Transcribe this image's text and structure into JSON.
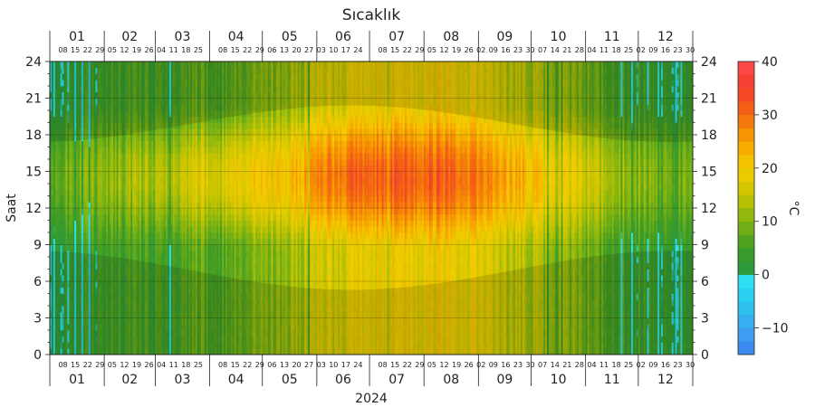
{
  "chart_data": {
    "type": "heatmap",
    "title": "Sıcaklık",
    "xlabel": "2024",
    "ylabel": "Saat",
    "colorbar_label": "°C",
    "year": 2024,
    "y_ticks": [
      "0",
      "3",
      "6",
      "9",
      "12",
      "15",
      "18",
      "21",
      "24"
    ],
    "y_range": [
      0,
      24
    ],
    "colorbar_ticks": [
      "−10",
      "0",
      "10",
      "20",
      "30",
      "40"
    ],
    "colorbar_range": [
      -15,
      40
    ],
    "months": [
      {
        "label": "01",
        "days": [
          "08",
          "15",
          "22",
          "29"
        ]
      },
      {
        "label": "02",
        "days": [
          "05",
          "12",
          "19",
          "26"
        ]
      },
      {
        "label": "03",
        "days": [
          "04",
          "11",
          "18",
          "25"
        ]
      },
      {
        "label": "04",
        "days": [
          "08",
          "15",
          "22",
          "29"
        ]
      },
      {
        "label": "05",
        "days": [
          "06",
          "13",
          "20",
          "27"
        ]
      },
      {
        "label": "06",
        "days": [
          "03",
          "10",
          "17",
          "24"
        ]
      },
      {
        "label": "07",
        "days": [
          "08",
          "15",
          "22",
          "29"
        ]
      },
      {
        "label": "08",
        "days": [
          "05",
          "12",
          "19",
          "26"
        ]
      },
      {
        "label": "09",
        "days": [
          "02",
          "09",
          "16",
          "23",
          "30"
        ]
      },
      {
        "label": "10",
        "days": [
          "07",
          "14",
          "21",
          "28"
        ]
      },
      {
        "label": "11",
        "days": [
          "04",
          "11",
          "18",
          "25"
        ]
      },
      {
        "label": "12",
        "days": [
          "02",
          "09",
          "16",
          "23",
          "30"
        ]
      }
    ],
    "monthly_temperature_c": [
      {
        "month": "01",
        "min": 3,
        "max": 9
      },
      {
        "month": "02",
        "min": 5,
        "max": 12
      },
      {
        "month": "03",
        "min": 6,
        "max": 15
      },
      {
        "month": "04",
        "min": 9,
        "max": 20
      },
      {
        "month": "05",
        "min": 12,
        "max": 22
      },
      {
        "month": "06",
        "min": 17,
        "max": 30
      },
      {
        "month": "07",
        "min": 19,
        "max": 32
      },
      {
        "month": "08",
        "min": 19,
        "max": 31
      },
      {
        "month": "09",
        "min": 15,
        "max": 25
      },
      {
        "month": "10",
        "min": 11,
        "max": 19
      },
      {
        "month": "11",
        "min": 6,
        "max": 13
      },
      {
        "month": "12",
        "min": 2,
        "max": 8
      }
    ],
    "colorscale": [
      {
        "value": -15,
        "color": "#3a80f0"
      },
      {
        "value": -10,
        "color": "#3ca6f2"
      },
      {
        "value": -5,
        "color": "#28c8ee"
      },
      {
        "value": 0,
        "color": "#2ee6f0"
      },
      {
        "value": 0.5,
        "color": "#2a9a3e"
      },
      {
        "value": 5,
        "color": "#3f9b24"
      },
      {
        "value": 10,
        "color": "#80b412"
      },
      {
        "value": 15,
        "color": "#c9c400"
      },
      {
        "value": 20,
        "color": "#f3cd00"
      },
      {
        "value": 25,
        "color": "#f7a200"
      },
      {
        "value": 30,
        "color": "#f46a10"
      },
      {
        "value": 35,
        "color": "#f43c2c"
      },
      {
        "value": 40,
        "color": "#ff4c4c"
      }
    ]
  }
}
